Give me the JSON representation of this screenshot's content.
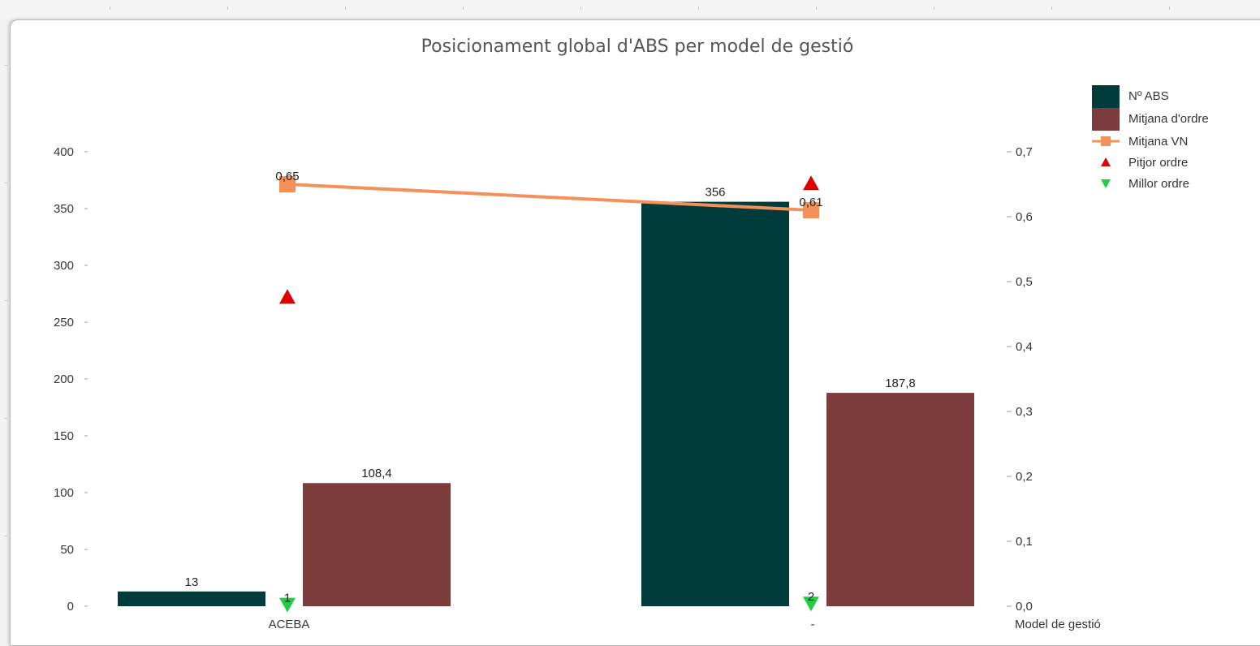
{
  "chart_data": {
    "type": "bar",
    "title": "Posicionament global d'ABS per model de gestió",
    "xlabel": "Model de gestió",
    "ylabel": "",
    "categories": [
      "ACEBA",
      "-"
    ],
    "ylim": [
      0,
      400
    ],
    "y2lim": [
      0,
      0.7
    ],
    "yticks": [
      "0",
      "50",
      "100",
      "150",
      "200",
      "250",
      "300",
      "350",
      "400"
    ],
    "y2ticks": [
      "0,0",
      "0,1",
      "0,2",
      "0,3",
      "0,4",
      "0,5",
      "0,6",
      "0,7"
    ],
    "legend_position": "top-right",
    "series": [
      {
        "name": "Nº ABS",
        "type": "bar",
        "axis": "left",
        "values": [
          13,
          356
        ],
        "labels": [
          "13",
          "356"
        ],
        "color": "#003c3c"
      },
      {
        "name": "Mitjana d'ordre",
        "type": "bar",
        "axis": "left",
        "values": [
          108.4,
          187.8
        ],
        "labels": [
          "108,4",
          "187,8"
        ],
        "color": "#7d3c3c"
      },
      {
        "name": "Mitjana VN",
        "type": "line",
        "axis": "right",
        "values": [
          0.65,
          0.61
        ],
        "labels": [
          "0,65",
          "0,61"
        ],
        "color": "#f4915a"
      },
      {
        "name": "Pitjor ordre",
        "type": "marker",
        "marker": "triangle-up",
        "axis": "left",
        "values": [
          272,
          372
        ],
        "labels": [
          "",
          ""
        ],
        "color": "#e00000"
      },
      {
        "name": "Millor ordre",
        "type": "marker",
        "marker": "triangle-down",
        "axis": "left",
        "values": [
          1,
          2
        ],
        "labels": [
          "1",
          "2"
        ],
        "color": "#22cc44"
      }
    ]
  }
}
